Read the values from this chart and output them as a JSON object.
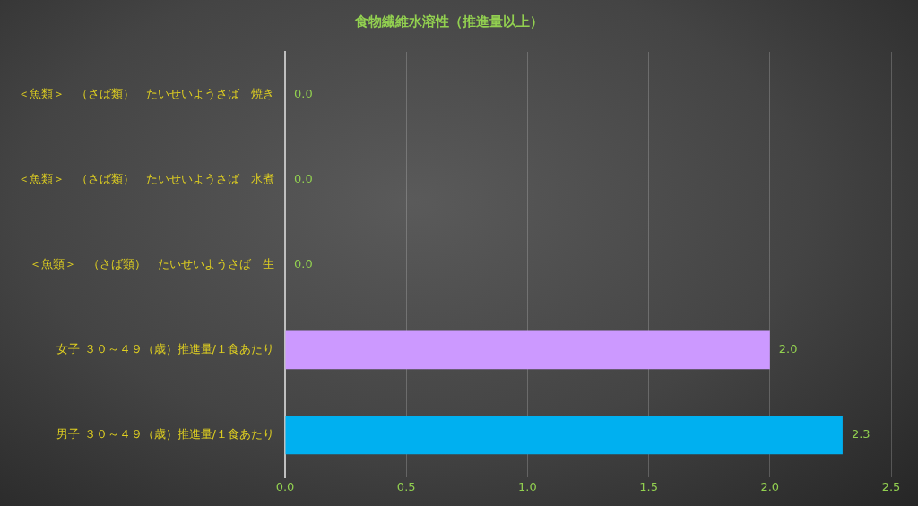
{
  "chart_data": {
    "type": "bar",
    "orientation": "horizontal",
    "title": "食物繊維水溶性（推進量以上）",
    "categories": [
      "＜魚類＞　（さば類）　たいせいようさば　焼き",
      "＜魚類＞　（さば類）　たいせいようさば　水煮",
      "＜魚類＞　（さば類）　たいせいようさば　生",
      "女子 ３０～４９（歳）推進量/１食あたり",
      "男子 ３０～４９（歳）推進量/１食あたり"
    ],
    "values": [
      0,
      0,
      0,
      2.0,
      2.3
    ],
    "colors": [
      "#00b0f0",
      "#00b0f0",
      "#00b0f0",
      "#cc99ff",
      "#00b0f0"
    ],
    "value_labels": [
      "0.0",
      "0.0",
      "0.0",
      "2.0",
      "2.3"
    ],
    "xlim": [
      0,
      2.5
    ],
    "xticks": [
      {
        "value": 0,
        "label": "0.0"
      },
      {
        "value": 0.5,
        "label": "0.5"
      },
      {
        "value": 1,
        "label": "1.0"
      },
      {
        "value": 1.5,
        "label": "1.5"
      },
      {
        "value": 2,
        "label": "2.0"
      },
      {
        "value": 2.5,
        "label": "2.5"
      }
    ],
    "grid": "x",
    "legend": false
  }
}
